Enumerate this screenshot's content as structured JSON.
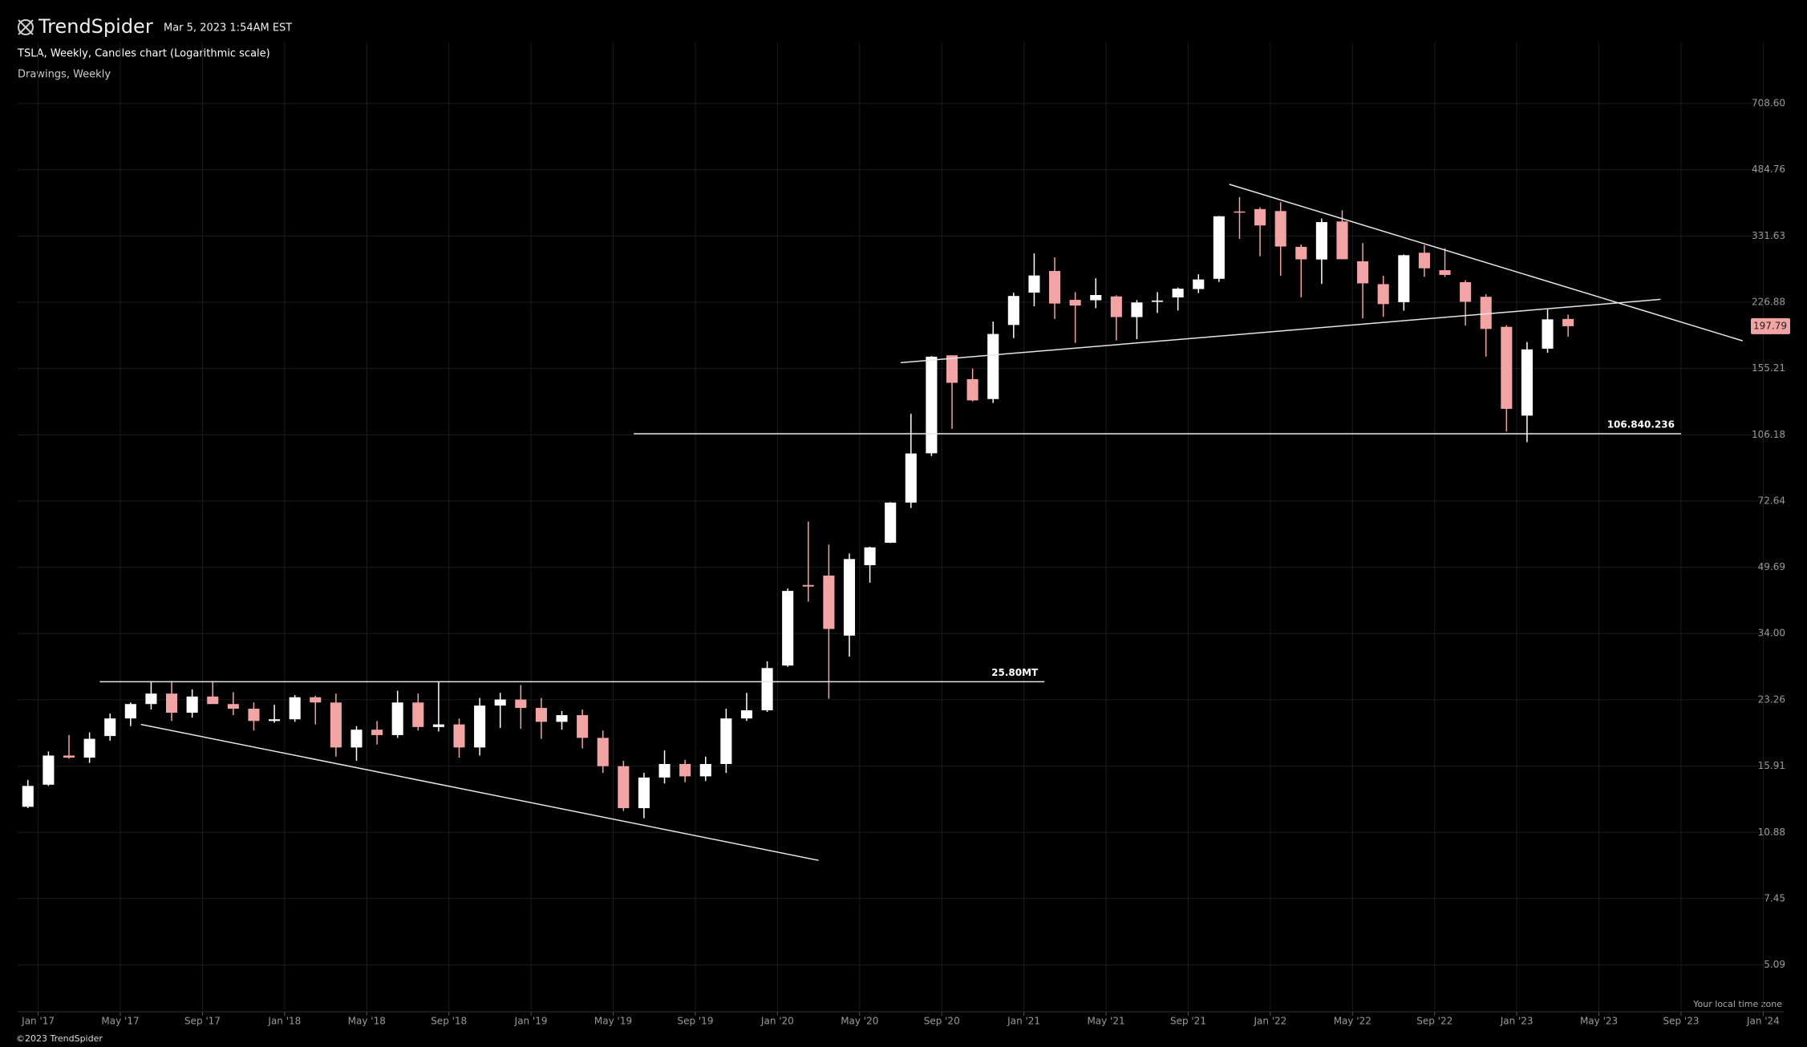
{
  "header": {
    "logo": "TrendSpider",
    "timestamp": "Mar 5, 2023 1:54AM EST",
    "subtitle": "Drawings, Weekly",
    "timezone_note": "Your local time zone",
    "copyright": "©2023 TrendSpider"
  },
  "chart_data": {
    "type": "candlestick",
    "title": "TSLA, Weekly, Candles chart (Logarithmic scale)",
    "x": [
      "2016-12",
      "2017-01",
      "2017-02",
      "2017-03",
      "2017-04",
      "2017-05",
      "2017-06",
      "2017-07",
      "2017-08",
      "2017-09",
      "2017-10",
      "2017-11",
      "2017-12",
      "2018-01",
      "2018-02",
      "2018-03",
      "2018-04",
      "2018-05",
      "2018-06",
      "2018-07",
      "2018-08",
      "2018-09",
      "2018-10",
      "2018-11",
      "2018-12",
      "2019-01",
      "2019-02",
      "2019-03",
      "2019-04",
      "2019-05",
      "2019-06",
      "2019-07",
      "2019-08",
      "2019-09",
      "2019-10",
      "2019-11",
      "2019-12",
      "2020-01",
      "2020-02",
      "2020-03",
      "2020-04",
      "2020-05",
      "2020-06",
      "2020-07",
      "2020-08",
      "2020-09",
      "2020-10",
      "2020-11",
      "2020-12",
      "2021-01",
      "2021-02",
      "2021-03",
      "2021-04",
      "2021-05",
      "2021-06",
      "2021-07",
      "2021-08",
      "2021-09",
      "2021-10",
      "2021-11",
      "2021-12",
      "2022-01",
      "2022-02",
      "2022-03",
      "2022-04",
      "2022-05",
      "2022-06",
      "2022-07",
      "2022-08",
      "2022-09",
      "2022-10",
      "2022-11",
      "2022-12",
      "2023-01",
      "2023-02",
      "2023-03"
    ],
    "open": [
      12.6,
      14.3,
      16.9,
      16.7,
      18.9,
      20.9,
      22.7,
      24.1,
      21.6,
      23.7,
      22.7,
      22.1,
      20.6,
      20.8,
      23.6,
      22.9,
      17.7,
      19.6,
      19.0,
      22.9,
      19.9,
      20.2,
      17.7,
      22.5,
      23.3,
      22.2,
      20.5,
      21.3,
      18.7,
      15.9,
      12.5,
      14.9,
      16.1,
      15.0,
      16.1,
      20.9,
      21.9,
      28.3,
      44.9,
      47.4,
      33.6,
      50.3,
      57.2,
      72.0,
      95.5,
      167.4,
      146.0,
      130.3,
      199.2,
      239.8,
      271.4,
      230.0,
      229.5,
      234.6,
      208.4,
      227.4,
      233.3,
      244.7,
      259.5,
      381.7,
      386.9,
      382.6,
      311.7,
      289.9,
      360.4,
      286.9,
      251.7,
      227.0,
      301.3,
      272.6,
      254.5,
      234.1,
      197.1,
      118.5,
      173.9,
      206.2
    ],
    "high": [
      14.7,
      17.3,
      19.0,
      19.3,
      21.5,
      22.9,
      25.9,
      25.9,
      24.7,
      25.9,
      24.3,
      22.9,
      22.6,
      23.9,
      23.8,
      24.1,
      20.0,
      20.6,
      24.5,
      24.1,
      25.8,
      20.9,
      23.5,
      24.2,
      25.3,
      23.5,
      21.8,
      22.0,
      19.5,
      16.4,
      15.3,
      17.4,
      16.5,
      16.8,
      22.1,
      24.2,
      29.0,
      44.0,
      64.6,
      56.6,
      53.8,
      55.9,
      72.2,
      119.7,
      166.7,
      167.5,
      155.3,
      203.1,
      239.6,
      300.1,
      293.4,
      240.4,
      260.3,
      236.0,
      229.7,
      240.4,
      246.8,
      266.3,
      372.0,
      414.5,
      390.9,
      402.7,
      315.9,
      366.6,
      384.3,
      318.5,
      264.2,
      298.3,
      314.7,
      309.0,
      257.5,
      237.4,
      198.9,
      180.7,
      217.7,
      211.2
    ],
    "low": [
      12.5,
      14.2,
      16.6,
      16.2,
      18.4,
      20.0,
      22.0,
      20.6,
      21.0,
      22.9,
      21.3,
      19.5,
      20.4,
      20.5,
      20.2,
      16.8,
      16.4,
      18.0,
      18.7,
      19.5,
      19.4,
      16.7,
      16.9,
      19.8,
      19.7,
      18.6,
      19.6,
      17.6,
      15.3,
      12.3,
      11.8,
      14.4,
      14.5,
      14.6,
      15.3,
      20.6,
      21.7,
      28.1,
      40.8,
      23.4,
      29.8,
      45.5,
      57.1,
      69.8,
      94.0,
      109.9,
      128.5,
      127.4,
      184.8,
      221.8,
      206.3,
      179.8,
      219.3,
      182.3,
      183.6,
      213.4,
      216.3,
      239.1,
      254.9,
      326.2,
      295.4,
      264.0,
      233.3,
      252.0,
      290.0,
      206.9,
      208.7,
      216.2,
      262.5,
      262.5,
      198.6,
      166.2,
      108.2,
      101.8,
      169.9,
      186.1
    ],
    "close": [
      14.2,
      16.9,
      16.7,
      18.6,
      20.9,
      22.7,
      24.1,
      21.6,
      23.7,
      22.7,
      22.1,
      20.6,
      20.8,
      23.6,
      22.9,
      17.7,
      19.6,
      19.0,
      22.9,
      19.9,
      20.2,
      17.7,
      22.5,
      23.3,
      22.2,
      20.5,
      21.3,
      18.7,
      15.9,
      12.5,
      14.9,
      16.1,
      15.0,
      16.1,
      20.9,
      21.9,
      27.9,
      43.4,
      44.5,
      34.9,
      52.1,
      55.7,
      72.0,
      95.4,
      166.1,
      143.0,
      129.3,
      189.2,
      235.2,
      264.5,
      225.2,
      222.6,
      236.5,
      208.4,
      226.6,
      229.1,
      245.2,
      258.5,
      371.3,
      381.6,
      352.3,
      312.2,
      290.1,
      359.2,
      290.3,
      252.8,
      224.5,
      297.1,
      275.6,
      265.3,
      227.5,
      194.7,
      123.2,
      173.2,
      205.7,
      197.79
    ],
    "up_color": "#ffffff",
    "down_color": "#f2a3a3",
    "log_scale": true,
    "grid": true,
    "xlim": [
      "2016-12",
      "2024-02"
    ],
    "xticks": [
      {
        "value": "2017-01",
        "label": "Jan '17"
      },
      {
        "value": "2017-05",
        "label": "May '17"
      },
      {
        "value": "2017-09",
        "label": "Sep '17"
      },
      {
        "value": "2018-01",
        "label": "Jan '18"
      },
      {
        "value": "2018-05",
        "label": "May '18"
      },
      {
        "value": "2018-09",
        "label": "Sep '18"
      },
      {
        "value": "2019-01",
        "label": "Jan '19"
      },
      {
        "value": "2019-05",
        "label": "May '19"
      },
      {
        "value": "2019-09",
        "label": "Sep '19"
      },
      {
        "value": "2020-01",
        "label": "Jan '20"
      },
      {
        "value": "2020-05",
        "label": "May '20"
      },
      {
        "value": "2020-09",
        "label": "Sep '20"
      },
      {
        "value": "2021-01",
        "label": "Jan '21"
      },
      {
        "value": "2021-05",
        "label": "May '21"
      },
      {
        "value": "2021-09",
        "label": "Sep '21"
      },
      {
        "value": "2022-01",
        "label": "Jan '22"
      },
      {
        "value": "2022-05",
        "label": "May '22"
      },
      {
        "value": "2022-09",
        "label": "Sep '22"
      },
      {
        "value": "2023-01",
        "label": "Jan '23"
      },
      {
        "value": "2023-05",
        "label": "May '23"
      },
      {
        "value": "2023-09",
        "label": "Sep '23"
      },
      {
        "value": "2024-01",
        "label": "Jan '24"
      }
    ],
    "ylim": [
      3.93,
      1005
    ],
    "yticks": [
      5.09,
      7.45,
      10.88,
      15.91,
      23.26,
      {
        "value": 34,
        "label": "34.00"
      },
      49.69,
      72.64,
      106.18,
      155.21,
      226.88,
      331.63,
      484.76,
      {
        "value": 708.6,
        "label": "708.60"
      }
    ],
    "drawings": [
      {
        "x": [
          "2017-04",
          "2021-02"
        ],
        "values": [
          25.8,
          25.8
        ],
        "label": "25.80MT"
      },
      {
        "x": [
          "2019-06",
          "2023-09"
        ],
        "values": [
          106.84,
          106.84
        ],
        "label": "106.840.236"
      },
      {
        "x": [
          "2017-06",
          "2020-03"
        ],
        "values": [
          20.2,
          9.27
        ]
      },
      {
        "x": [
          "2020-07",
          "2023-08"
        ],
        "values": [
          160.5,
          230.7
        ]
      },
      {
        "x": [
          "2021-11",
          "2023-12"
        ],
        "values": [
          446,
          181.9
        ]
      }
    ]
  }
}
